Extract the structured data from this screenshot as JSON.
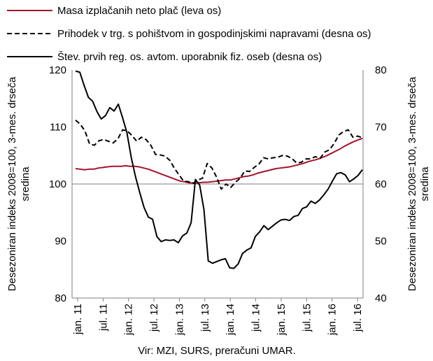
{
  "chart_data": {
    "type": "line",
    "source": "Vir: MZI, SURS, preračuni UMAR.",
    "y_left": {
      "title_lines": [
        "Desezoniran indeks 2008=100, 3-mes. drseča",
        "sredina"
      ],
      "ticks": [
        "80",
        "90",
        "100",
        "110",
        "120"
      ],
      "range": [
        80,
        120
      ]
    },
    "y_right": {
      "title_lines": [
        "Desezoniran indeks 2008=100, 3-mes. drseča",
        "sredina"
      ],
      "ticks": [
        "40",
        "50",
        "60",
        "70",
        "80"
      ],
      "range": [
        40,
        80
      ]
    },
    "x": {
      "tick_labels": [
        "jan. 11",
        "jul. 11",
        "jan. 12",
        "jul. 12",
        "jan. 13",
        "jul. 13",
        "jan. 14",
        "jul. 14",
        "jan. 15",
        "jul. 15",
        "jan. 16",
        "jul. 16"
      ],
      "start_label": "jan. 11",
      "end_label": "jul. 16"
    },
    "reference_line": {
      "axis": "left",
      "value": 100
    },
    "series": [
      {
        "name": "Masa izplačanih neto plač (leva os)",
        "axis": "left",
        "color": "#a5122c",
        "style": "solid",
        "values": [
          102.7,
          102.6,
          102.5,
          102.6,
          102.6,
          102.8,
          102.9,
          103.0,
          103.1,
          103.1,
          103.1,
          103.2,
          103.1,
          103.1,
          103.0,
          102.8,
          102.6,
          102.3,
          102.0,
          101.7,
          101.4,
          101.1,
          100.8,
          100.5,
          100.4,
          100.2,
          100.2,
          100.2,
          100.3,
          100.3,
          100.4,
          100.5,
          100.6,
          100.7,
          100.7,
          100.9,
          101.1,
          101.3,
          101.4,
          101.6,
          101.9,
          102.1,
          102.3,
          102.5,
          102.7,
          102.8,
          102.9,
          103.0,
          103.2,
          103.4,
          103.6,
          103.9,
          104.1,
          104.3,
          104.6,
          104.9,
          105.3,
          105.7,
          106.1,
          106.6,
          107.0,
          107.4,
          107.7,
          108.0
        ]
      },
      {
        "name": "Prihodek v trg. s pohištvom in gospodinjskimi napravami (desna os)",
        "axis": "right",
        "color": "#000000",
        "style": "dashed",
        "values": [
          71.2,
          70.5,
          69.3,
          67.0,
          66.8,
          67.6,
          67.8,
          67.5,
          67.2,
          67.9,
          69.5,
          69.3,
          68.5,
          67.5,
          68.2,
          67.8,
          66.8,
          65.2,
          65.1,
          64.9,
          64.2,
          62.8,
          61.6,
          60.5,
          60.4,
          60.1,
          60.7,
          61.0,
          63.6,
          62.8,
          61.2,
          59.1,
          60.0,
          59.4,
          60.3,
          61.0,
          62.3,
          62.2,
          62.9,
          63.5,
          64.6,
          64.4,
          64.6,
          64.7,
          65.0,
          64.9,
          64.5,
          63.7,
          63.8,
          64.4,
          64.4,
          64.8,
          64.5,
          65.6,
          66.0,
          67.1,
          68.6,
          69.2,
          69.5,
          68.2,
          68.4,
          68.1
        ]
      },
      {
        "name": "Štev. prvih reg. os. avtom. uporabnik fiz. oseb (desna os)",
        "axis": "right",
        "color": "#000000",
        "style": "solid",
        "values": [
          79.8,
          79.6,
          77.3,
          75.2,
          74.5,
          72.7,
          71.4,
          72.0,
          73.4,
          72.8,
          74.0,
          71.6,
          69.0,
          64.7,
          61.3,
          58.5,
          55.9,
          54.2,
          53.8,
          50.8,
          49.9,
          50.2,
          50.1,
          50.2,
          49.7,
          50.9,
          51.4,
          53.2,
          60.8,
          59.8,
          55.5,
          46.5,
          46.1,
          46.4,
          46.7,
          46.9,
          45.3,
          45.2,
          46.0,
          47.8,
          48.4,
          48.8,
          50.8,
          51.6,
          52.7,
          52.0,
          52.6,
          53.2,
          53.7,
          53.8,
          53.6,
          54.3,
          54.5,
          55.7,
          56.0,
          57.0,
          56.6,
          57.2,
          58.1,
          59.1,
          60.5,
          61.8,
          62.0,
          61.6,
          60.4,
          60.9,
          61.5,
          62.5
        ]
      }
    ]
  }
}
